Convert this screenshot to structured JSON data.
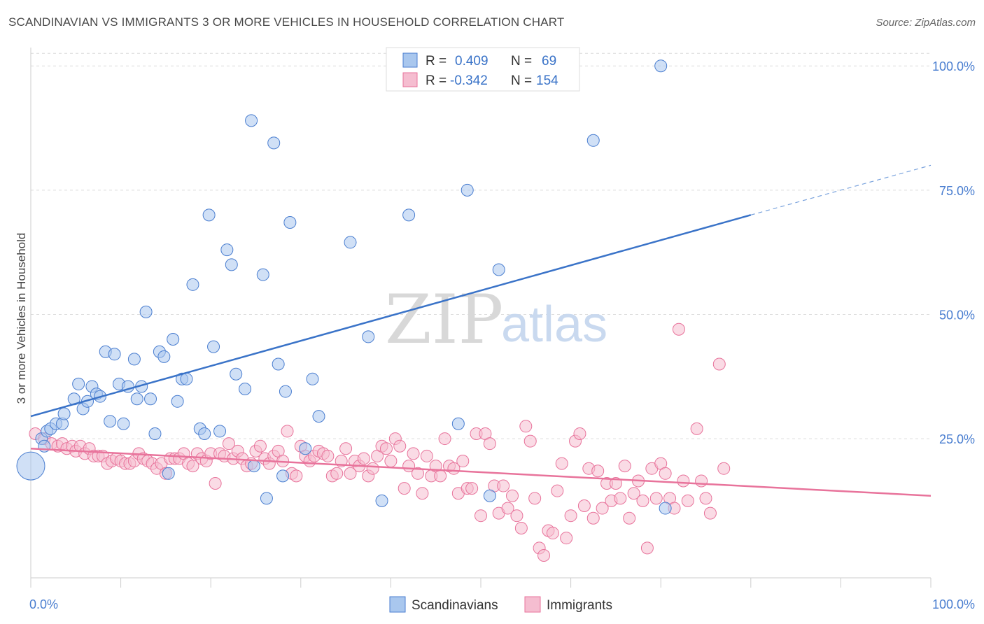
{
  "title": "SCANDINAVIAN VS IMMIGRANTS 3 OR MORE VEHICLES IN HOUSEHOLD CORRELATION CHART",
  "source": "Source: ZipAtlas.com",
  "watermark": {
    "zip": "ZIP",
    "atlas": "atlas"
  },
  "colors": {
    "blue": "#4a7ed0",
    "blue_fill": "#a9c7ee",
    "pink": "#e8739b",
    "pink_fill": "#f5bdd0"
  },
  "legend": {
    "rows": [
      {
        "r_label": "R =",
        "r_value": "0.409",
        "n_label": "N =",
        "n_value": "69"
      },
      {
        "r_label": "R =",
        "r_value": "-0.342",
        "n_label": "N =",
        "n_value": "154"
      }
    ]
  },
  "bottom_legend": [
    "Scandinavians",
    "Immigrants"
  ],
  "chart_data": {
    "type": "scatter",
    "title": "SCANDINAVIAN VS IMMIGRANTS 3 OR MORE VEHICLES IN HOUSEHOLD CORRELATION CHART",
    "xlabel": "",
    "ylabel": "3 or more Vehicles in Household",
    "x_tick_labels": [
      "0.0%",
      "100.0%"
    ],
    "y_tick_labels": [
      "25.0%",
      "50.0%",
      "75.0%",
      "100.0%"
    ],
    "y_ticks": [
      25,
      50,
      75,
      100
    ],
    "xlim": [
      0,
      100
    ],
    "ylim": [
      -3,
      102
    ],
    "grid": true,
    "legend_position": "top-center",
    "series": [
      {
        "name": "Scandinavians",
        "R": 0.409,
        "N": 69,
        "trend": {
          "x0": 0,
          "y0": 29.5,
          "x1": 80,
          "y1": 70,
          "dashed_to": [
            100,
            80
          ]
        },
        "points": [
          [
            0,
            19.5
          ],
          [
            1.2,
            25
          ],
          [
            1.5,
            23.5
          ],
          [
            1.8,
            26.5
          ],
          [
            2.2,
            27
          ],
          [
            2.8,
            28
          ],
          [
            3.5,
            28
          ],
          [
            3.7,
            30
          ],
          [
            4.8,
            33
          ],
          [
            5.3,
            36
          ],
          [
            5.8,
            31
          ],
          [
            6.3,
            32.5
          ],
          [
            6.8,
            35.5
          ],
          [
            7.3,
            34
          ],
          [
            7.7,
            33.5
          ],
          [
            8.3,
            42.5
          ],
          [
            8.8,
            28.5
          ],
          [
            9.3,
            42
          ],
          [
            9.8,
            36
          ],
          [
            10.3,
            28
          ],
          [
            10.8,
            35.5
          ],
          [
            11.5,
            41
          ],
          [
            11.8,
            33
          ],
          [
            12.3,
            35.5
          ],
          [
            12.8,
            50.5
          ],
          [
            13.3,
            33
          ],
          [
            13.8,
            26
          ],
          [
            14.3,
            42.5
          ],
          [
            14.8,
            41.5
          ],
          [
            15.3,
            18
          ],
          [
            15.8,
            45
          ],
          [
            16.3,
            32.5
          ],
          [
            16.8,
            37
          ],
          [
            17.3,
            37
          ],
          [
            18,
            56
          ],
          [
            18.8,
            27
          ],
          [
            19.3,
            26
          ],
          [
            19.8,
            70
          ],
          [
            20.3,
            43.5
          ],
          [
            21,
            26.5
          ],
          [
            21.8,
            63
          ],
          [
            22.3,
            60
          ],
          [
            22.8,
            38
          ],
          [
            23.8,
            35
          ],
          [
            24.5,
            89
          ],
          [
            24.8,
            19.5
          ],
          [
            25.8,
            58
          ],
          [
            26.2,
            13
          ],
          [
            27,
            84.5
          ],
          [
            27.5,
            40
          ],
          [
            28,
            17.5
          ],
          [
            28.3,
            34.5
          ],
          [
            28.8,
            68.5
          ],
          [
            30.5,
            23
          ],
          [
            31.3,
            37
          ],
          [
            32,
            29.5
          ],
          [
            35.5,
            64.5
          ],
          [
            37.5,
            45.5
          ],
          [
            39,
            12.5
          ],
          [
            42,
            70
          ],
          [
            47.5,
            28
          ],
          [
            48.5,
            75
          ],
          [
            51,
            13.5
          ],
          [
            52,
            59
          ],
          [
            62.5,
            85
          ],
          [
            70.5,
            11
          ],
          [
            70,
            100
          ]
        ]
      },
      {
        "name": "Immigrants",
        "R": -0.342,
        "N": 154,
        "trend": {
          "x0": 0,
          "y0": 23,
          "x1": 100,
          "y1": 13.5
        },
        "points": [
          [
            0.5,
            26
          ],
          [
            1.5,
            25
          ],
          [
            2.3,
            24
          ],
          [
            3,
            23.5
          ],
          [
            3.5,
            24
          ],
          [
            4,
            23
          ],
          [
            4.6,
            23.5
          ],
          [
            5,
            22.5
          ],
          [
            5.5,
            23.5
          ],
          [
            6,
            22
          ],
          [
            6.5,
            23
          ],
          [
            7,
            21.5
          ],
          [
            7.5,
            21.5
          ],
          [
            8,
            21.5
          ],
          [
            8.5,
            20
          ],
          [
            9,
            20.5
          ],
          [
            9.5,
            21
          ],
          [
            10,
            20.5
          ],
          [
            10.5,
            20
          ],
          [
            11,
            20
          ],
          [
            11.5,
            20.5
          ],
          [
            12,
            22
          ],
          [
            12.5,
            21
          ],
          [
            13,
            20.5
          ],
          [
            13.5,
            20
          ],
          [
            14,
            19
          ],
          [
            14.5,
            20
          ],
          [
            15,
            18
          ],
          [
            15.5,
            21
          ],
          [
            16,
            21
          ],
          [
            16.5,
            21
          ],
          [
            17,
            22
          ],
          [
            17.5,
            20
          ],
          [
            18,
            19.5
          ],
          [
            18.5,
            22
          ],
          [
            19,
            21
          ],
          [
            19.5,
            20.5
          ],
          [
            20,
            22
          ],
          [
            20.5,
            16
          ],
          [
            21,
            22
          ],
          [
            21.5,
            21.5
          ],
          [
            22,
            24
          ],
          [
            22.5,
            21
          ],
          [
            23,
            22.5
          ],
          [
            23.5,
            21
          ],
          [
            24,
            19.5
          ],
          [
            24.5,
            20
          ],
          [
            25,
            22.5
          ],
          [
            25.5,
            23.5
          ],
          [
            26,
            21
          ],
          [
            26.5,
            20
          ],
          [
            27,
            21.5
          ],
          [
            27.5,
            22.5
          ],
          [
            28,
            20.5
          ],
          [
            28.5,
            26.5
          ],
          [
            29,
            18
          ],
          [
            29.5,
            17.5
          ],
          [
            30,
            23.5
          ],
          [
            30.5,
            21.5
          ],
          [
            31,
            20.5
          ],
          [
            31.5,
            21.5
          ],
          [
            32,
            22.5
          ],
          [
            32.5,
            22
          ],
          [
            33,
            21.5
          ],
          [
            33.5,
            17.5
          ],
          [
            34,
            18
          ],
          [
            34.5,
            20.5
          ],
          [
            35,
            23
          ],
          [
            35.5,
            18
          ],
          [
            36,
            20.5
          ],
          [
            36.5,
            19.5
          ],
          [
            37,
            21
          ],
          [
            37.5,
            17.5
          ],
          [
            38,
            19
          ],
          [
            38.5,
            21.5
          ],
          [
            39,
            23.5
          ],
          [
            39.5,
            23
          ],
          [
            40,
            20.5
          ],
          [
            40.5,
            25
          ],
          [
            41,
            23.5
          ],
          [
            41.5,
            15
          ],
          [
            42,
            19.5
          ],
          [
            42.5,
            22
          ],
          [
            43,
            18
          ],
          [
            43.5,
            14
          ],
          [
            44,
            21.5
          ],
          [
            44.5,
            17.5
          ],
          [
            45,
            19.5
          ],
          [
            45.5,
            17.5
          ],
          [
            46,
            25
          ],
          [
            46.5,
            19.5
          ],
          [
            47,
            19
          ],
          [
            47.5,
            14
          ],
          [
            48,
            20.5
          ],
          [
            48.5,
            15
          ],
          [
            49,
            15
          ],
          [
            49.5,
            26
          ],
          [
            50,
            9.5
          ],
          [
            50.5,
            26
          ],
          [
            51,
            24
          ],
          [
            51.5,
            15.5
          ],
          [
            52,
            10
          ],
          [
            52.5,
            15.5
          ],
          [
            53,
            11
          ],
          [
            53.5,
            13.5
          ],
          [
            54,
            9.5
          ],
          [
            54.5,
            7
          ],
          [
            55,
            27.5
          ],
          [
            55.5,
            24.5
          ],
          [
            56,
            13
          ],
          [
            56.5,
            3
          ],
          [
            57,
            1.5
          ],
          [
            57.5,
            6.5
          ],
          [
            58,
            6
          ],
          [
            58.5,
            14.5
          ],
          [
            59,
            20
          ],
          [
            59.5,
            5
          ],
          [
            60,
            9.5
          ],
          [
            60.5,
            24.5
          ],
          [
            61,
            26
          ],
          [
            61.5,
            11.5
          ],
          [
            62,
            19
          ],
          [
            62.5,
            9
          ],
          [
            63,
            18.5
          ],
          [
            63.5,
            11
          ],
          [
            64,
            16
          ],
          [
            64.5,
            12.5
          ],
          [
            65,
            16
          ],
          [
            65.5,
            13
          ],
          [
            66,
            19.5
          ],
          [
            66.5,
            9
          ],
          [
            67,
            14
          ],
          [
            67.5,
            16.5
          ],
          [
            68,
            12.5
          ],
          [
            68.5,
            3
          ],
          [
            69,
            19
          ],
          [
            69.5,
            13
          ],
          [
            70,
            20
          ],
          [
            70.5,
            18
          ],
          [
            71,
            13
          ],
          [
            71.5,
            11
          ],
          [
            72,
            47
          ],
          [
            72.5,
            16.5
          ],
          [
            73,
            12.5
          ],
          [
            74,
            27
          ],
          [
            74.5,
            16.5
          ],
          [
            75,
            13
          ],
          [
            75.5,
            10
          ],
          [
            76.5,
            40
          ],
          [
            77,
            19
          ]
        ]
      }
    ]
  }
}
